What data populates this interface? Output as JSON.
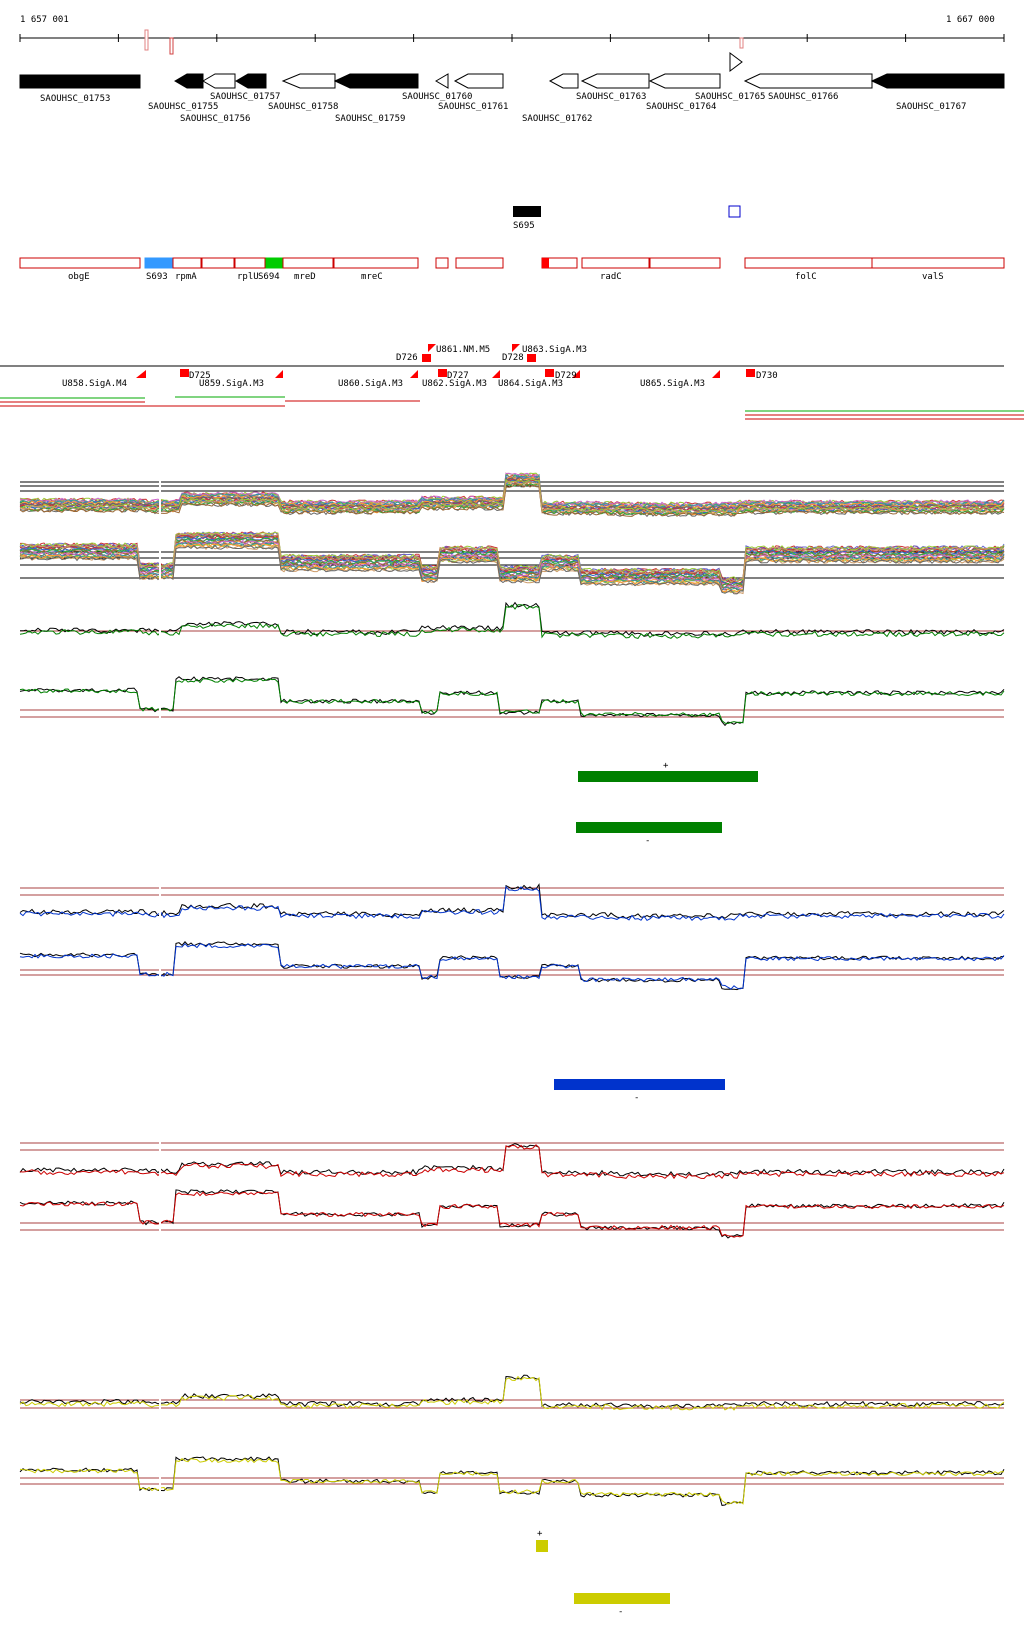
{
  "ruler": {
    "start_label": "1 657 001",
    "end_label": "1 667 000"
  },
  "genes_top": [
    {
      "label": "SAOUHSC_01753",
      "fill": "#000000"
    },
    {
      "label": "SAOUHSC_01755",
      "fill": "#000000"
    },
    {
      "label": "SAOUHSC_01756",
      "fill": "#ffffff"
    },
    {
      "label": "SAOUHSC_01757",
      "fill": "#000000"
    },
    {
      "label": "SAOUHSC_01758",
      "fill": "#ffffff"
    },
    {
      "label": "SAOUHSC_01759",
      "fill": "#000000"
    },
    {
      "label": "SAOUHSC_01760",
      "fill": "#ffffff"
    },
    {
      "label": "SAOUHSC_01761",
      "fill": "#ffffff"
    },
    {
      "label": "SAOUHSC_01762",
      "fill": "#ffffff"
    },
    {
      "label": "SAOUHSC_01763",
      "fill": "#ffffff"
    },
    {
      "label": "SAOUHSC_01764",
      "fill": "#ffffff"
    },
    {
      "label": "SAOUHSC_01765",
      "fill": "#ffffff"
    },
    {
      "label": "SAOUHSC_01766",
      "fill": "#ffffff"
    },
    {
      "label": "SAOUHSC_01767",
      "fill": "#000000"
    }
  ],
  "s_features": [
    {
      "label": "S695",
      "fill": "#000000"
    },
    {
      "label": "",
      "fill": "#ffffff",
      "stroke": "#0000cc"
    }
  ],
  "annotation_genes": [
    "obgE",
    "S693",
    "rpmA",
    "rplU",
    "S694",
    "mreD",
    "mreC",
    "radC",
    "folC",
    "valS"
  ],
  "promoters": [
    "U858.SigA.M4",
    "D725",
    "U859.SigA.M3",
    "U860.SigA.M3",
    "D726",
    "U861.NM.M5",
    "U862.SigA.M3",
    "D727",
    "D728",
    "U863.SigA.M3",
    "U864.SigA.M3",
    "D729",
    "U865.SigA.M3",
    "D730"
  ],
  "segment_labels": {
    "green_plus": "+",
    "green_minus": "-",
    "blue_minus": "-",
    "yellow_plus": "+",
    "yellow_minus": "-"
  },
  "colors": {
    "gene_outline": "#cc0000",
    "promoter": "#ff0000",
    "green": "#008000",
    "blue": "#0033cc",
    "red": "#cc0000",
    "yellow": "#cccc00",
    "cyan_feature": "#3399ff",
    "lime_feature": "#00cc00",
    "threshold": "#8b0000"
  }
}
